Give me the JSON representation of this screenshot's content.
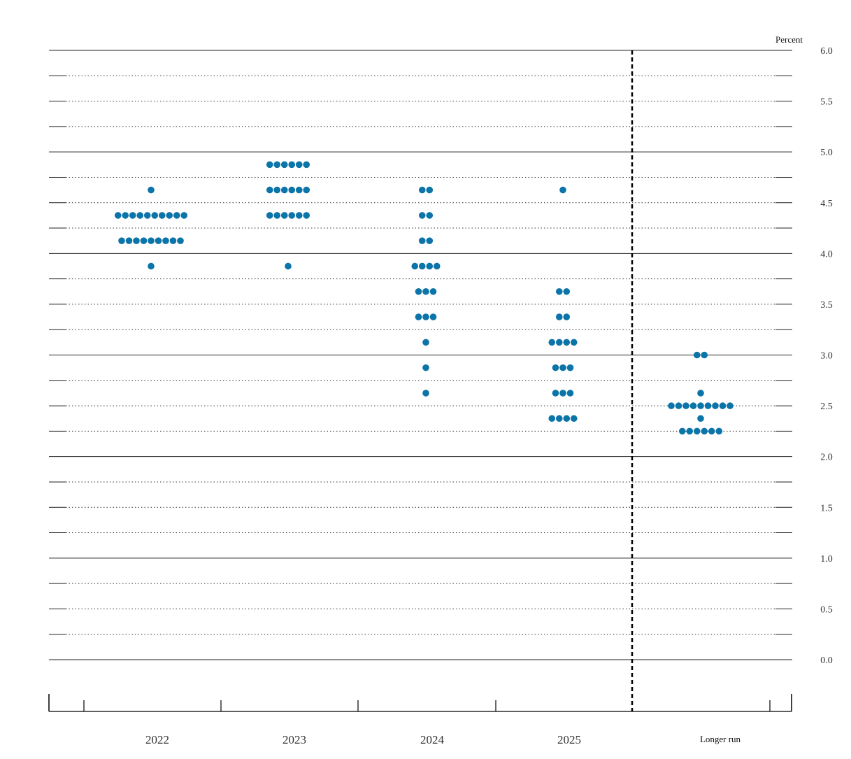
{
  "chart_data": {
    "type": "scatter",
    "title": "",
    "xlabel": "",
    "ylabel": "Percent",
    "ylim": [
      0,
      6
    ],
    "yticks": [
      "0.0",
      "0.5",
      "1.0",
      "1.5",
      "2.0",
      "2.5",
      "3.0",
      "3.5",
      "4.0",
      "4.5",
      "5.0",
      "5.5",
      "6.0"
    ],
    "grid": "dotted every 0.25, solid every 1.0",
    "categories": [
      "2022",
      "2023",
      "2024",
      "2025",
      "Longer run"
    ],
    "separator": "dashed vertical line between 2025 and Longer run",
    "dot_color": "#0B74A8",
    "dots": [
      {
        "category": "2022",
        "rows": [
          {
            "value": 4.625,
            "count": 1
          },
          {
            "value": 4.375,
            "count": 10
          },
          {
            "value": 4.125,
            "count": 9
          },
          {
            "value": 3.875,
            "count": 1
          }
        ]
      },
      {
        "category": "2023",
        "rows": [
          {
            "value": 4.875,
            "count": 6
          },
          {
            "value": 4.625,
            "count": 6
          },
          {
            "value": 4.375,
            "count": 6
          },
          {
            "value": 3.875,
            "count": 1
          }
        ]
      },
      {
        "category": "2024",
        "rows": [
          {
            "value": 4.625,
            "count": 2
          },
          {
            "value": 4.375,
            "count": 2
          },
          {
            "value": 4.125,
            "count": 2
          },
          {
            "value": 3.875,
            "count": 4
          },
          {
            "value": 3.625,
            "count": 3
          },
          {
            "value": 3.375,
            "count": 3
          },
          {
            "value": 3.125,
            "count": 1
          },
          {
            "value": 2.875,
            "count": 1
          },
          {
            "value": 2.625,
            "count": 1
          }
        ]
      },
      {
        "category": "2025",
        "rows": [
          {
            "value": 4.625,
            "count": 1
          },
          {
            "value": 3.625,
            "count": 2
          },
          {
            "value": 3.375,
            "count": 2
          },
          {
            "value": 3.125,
            "count": 4
          },
          {
            "value": 2.875,
            "count": 3
          },
          {
            "value": 2.625,
            "count": 3
          },
          {
            "value": 2.375,
            "count": 4
          }
        ]
      },
      {
        "category": "Longer run",
        "rows": [
          {
            "value": 3.0,
            "count": 2
          },
          {
            "value": 2.625,
            "count": 1
          },
          {
            "value": 2.5,
            "count": 9
          },
          {
            "value": 2.375,
            "count": 1
          },
          {
            "value": 2.25,
            "count": 6
          }
        ]
      }
    ]
  }
}
